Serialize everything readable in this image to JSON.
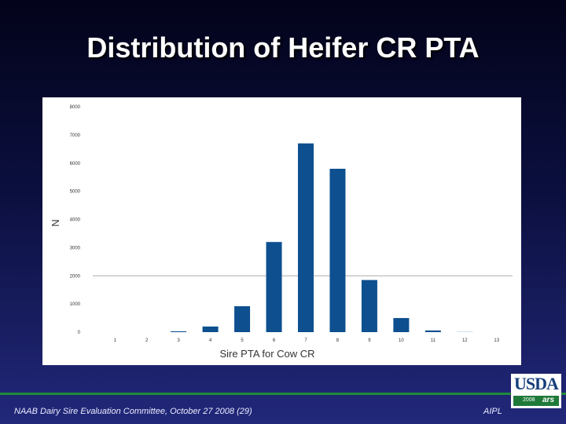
{
  "slide": {
    "title": "Distribution of Heifer CR PTA",
    "footer_left": "NAAB Dairy Sire Evaluation Committee, October 27 2008 (29)",
    "footer_right": "AIPL",
    "logo_text": "USDA",
    "logo_year": "2008",
    "logo_ars": "ars"
  },
  "chart_data": {
    "type": "bar",
    "categories": [
      "1",
      "2",
      "3",
      "4",
      "5",
      "6",
      "7",
      "8",
      "9",
      "10",
      "11",
      "12",
      "13"
    ],
    "values": [
      0,
      0,
      30,
      200,
      920,
      3200,
      6700,
      5800,
      1850,
      500,
      60,
      5,
      0
    ],
    "y_ticks": [
      "0",
      "1000",
      "2000",
      "3000",
      "4000",
      "5000",
      "6000",
      "7000",
      "8000"
    ],
    "xlabel": "Sire PTA for Cow CR",
    "ylabel": "N",
    "ylim": [
      0,
      8000
    ],
    "grid_lines": [
      2000
    ],
    "bar_color": "#0d4f8f"
  }
}
